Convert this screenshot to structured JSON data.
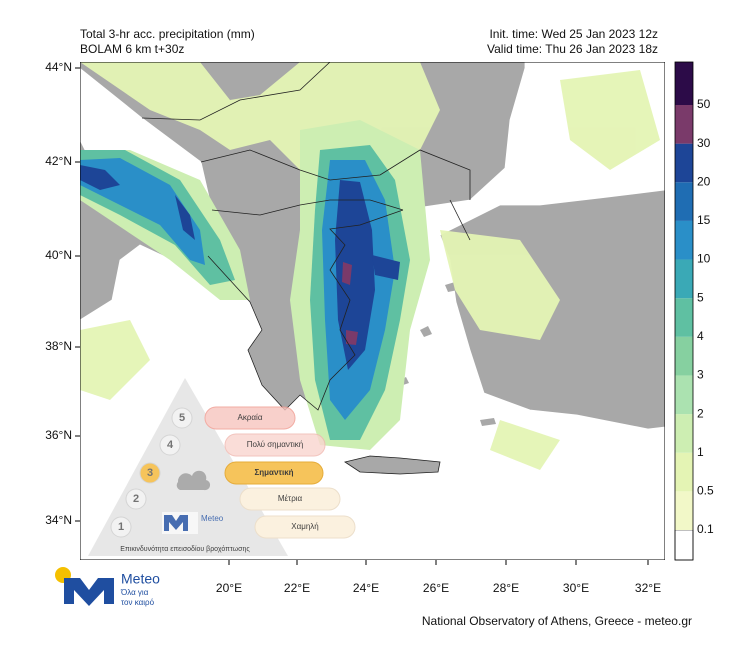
{
  "header": {
    "title": "Total 3-hr acc. precipitation (mm)",
    "model": "BOLAM 6 km t+30z",
    "init_time": "Init. time: Wed 25 Jan 2023 12z",
    "valid_time": "Valid time: Thu 26 Jan 2023 18z"
  },
  "map": {
    "lat_ticks": [
      "44°N",
      "42°N",
      "40°N",
      "38°N",
      "36°N",
      "34°N"
    ],
    "lon_ticks": [
      "20°E",
      "22°E",
      "24°E",
      "26°E",
      "28°E",
      "30°E",
      "32°E"
    ]
  },
  "colorbar": {
    "bands": [
      {
        "label": "0.1",
        "color": "#f2f8c8"
      },
      {
        "label": "0.5",
        "color": "#e4f4b4"
      },
      {
        "label": "1",
        "color": "#cdeeb2"
      },
      {
        "label": "2",
        "color": "#abe2b0"
      },
      {
        "label": "3",
        "color": "#86d0a0"
      },
      {
        "label": "4",
        "color": "#5fc0a2"
      },
      {
        "label": "5",
        "color": "#3aa9b6"
      },
      {
        "label": "10",
        "color": "#2a8fc8"
      },
      {
        "label": "15",
        "color": "#1f6db3"
      },
      {
        "label": "20",
        "color": "#1d4597"
      },
      {
        "label": "30",
        "color": "#7a3a6a"
      },
      {
        "label": "50",
        "color": "#2c0b48"
      }
    ]
  },
  "risk_legend": {
    "levels": [
      {
        "number": "1",
        "label": "Χαμηλή"
      },
      {
        "number": "2",
        "label": "Μέτρια"
      },
      {
        "number": "3",
        "label": "Σημαντική"
      },
      {
        "number": "4",
        "label": "Πολύ σημαντική"
      },
      {
        "number": "5",
        "label": "Ακραία"
      }
    ],
    "brand": "Meteo",
    "caption": "Επικινδυνότητα επεισοδίου βροχόπτωσης"
  },
  "logo": {
    "name": "Meteo",
    "tagline_1": "Όλα για",
    "tagline_2": "τον καιρό"
  },
  "footer": {
    "credit": "National Observatory of Athens, Greece - meteo.gr"
  }
}
